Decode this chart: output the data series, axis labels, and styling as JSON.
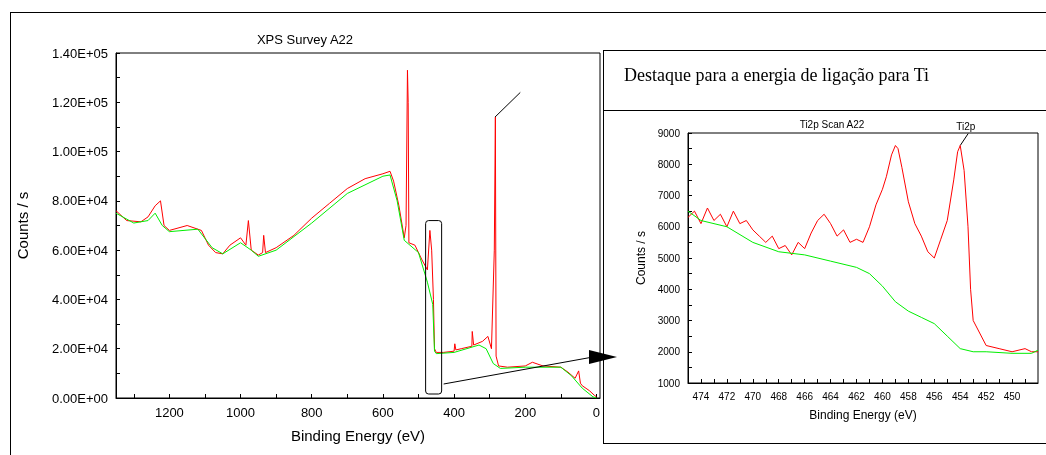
{
  "chart_data": [
    {
      "type": "line",
      "title": "XPS Survey A22",
      "xlabel": "Binding Energy (eV)",
      "ylabel": "Counts / s",
      "marker": "none",
      "grid": false,
      "xlim": [
        1350,
        -10
      ],
      "ylim": [
        0,
        140000
      ],
      "xticks": [
        {
          "value": 1300,
          "label": null
        },
        1200,
        {
          "value": 1100,
          "label": null
        },
        1000,
        {
          "value": 900,
          "label": null
        },
        800,
        {
          "value": 700,
          "label": null
        },
        600,
        {
          "value": 500,
          "label": null
        },
        400,
        {
          "value": 300,
          "label": null
        },
        200,
        {
          "value": 100,
          "label": null
        },
        0
      ],
      "yticks": [
        {
          "value": 0,
          "label": "0.00E+00"
        },
        {
          "value": 10000,
          "label": null
        },
        {
          "value": 20000,
          "label": "2.00E+04"
        },
        {
          "value": 30000,
          "label": null
        },
        {
          "value": 40000,
          "label": "4.00E+04"
        },
        {
          "value": 50000,
          "label": null
        },
        {
          "value": 60000,
          "label": "6.00E+04"
        },
        {
          "value": 70000,
          "label": null
        },
        {
          "value": 80000,
          "label": "8.00E+04"
        },
        {
          "value": 90000,
          "label": null
        },
        {
          "value": 100000,
          "label": "1.00E+05"
        },
        {
          "value": 110000,
          "label": null
        },
        {
          "value": 120000,
          "label": "1.20E+05"
        },
        {
          "value": 130000,
          "label": null
        },
        {
          "value": 140000,
          "label": "1.40E+05"
        }
      ],
      "series": [
        {
          "color": "#ff0000",
          "x": [
            1350,
            1320,
            1280,
            1260,
            1240,
            1225,
            1215,
            1200,
            1150,
            1110,
            1090,
            1070,
            1050,
            1030,
            1000,
            985,
            978,
            970,
            950,
            938,
            935,
            930,
            900,
            850,
            800,
            750,
            700,
            650,
            600,
            580,
            570,
            555,
            540,
            535,
            531,
            529,
            527,
            510,
            490,
            475,
            468,
            463,
            458,
            455,
            450,
            430,
            400,
            398,
            395,
            380,
            350,
            349,
            345,
            320,
            305,
            295,
            287,
            284,
            282,
            275,
            250,
            200,
            180,
            150,
            100,
            80,
            60,
            50,
            45,
            40,
            20,
            5,
            0
          ],
          "values": [
            76000,
            72000,
            71500,
            73500,
            78000,
            80000,
            70000,
            68000,
            70000,
            68000,
            62000,
            59000,
            58500,
            62000,
            65000,
            62000,
            72000,
            60000,
            58000,
            59000,
            66000,
            59000,
            61000,
            66000,
            73000,
            79000,
            85000,
            89000,
            91000,
            92000,
            88000,
            78000,
            65000,
            70000,
            133000,
            120000,
            63000,
            62000,
            56000,
            52000,
            68000,
            60000,
            40000,
            20000,
            18500,
            18500,
            19000,
            22000,
            19500,
            20000,
            21000,
            27000,
            21500,
            23000,
            25000,
            20000,
            60000,
            114000,
            17000,
            13000,
            12500,
            13000,
            14500,
            13000,
            12500,
            10500,
            8000,
            11000,
            6000,
            5000,
            3000,
            1000,
            500
          ]
        },
        {
          "color": "#00ee00",
          "x": [
            1350,
            1300,
            1260,
            1240,
            1220,
            1200,
            1120,
            1080,
            1050,
            1000,
            970,
            950,
            900,
            800,
            700,
            600,
            580,
            560,
            540,
            500,
            475,
            460,
            455,
            450,
            400,
            330,
            310,
            290,
            270,
            200,
            100,
            70,
            40,
            10,
            0
          ],
          "values": [
            75000,
            71000,
            72000,
            75000,
            70000,
            67500,
            68500,
            61000,
            58500,
            63000,
            60000,
            57500,
            60000,
            71000,
            83000,
            90000,
            90500,
            80000,
            64000,
            59000,
            47000,
            38000,
            19000,
            18000,
            18500,
            21500,
            20000,
            14000,
            12000,
            12500,
            12500,
            9000,
            4000,
            500,
            0
          ]
        }
      ]
    },
    {
      "type": "line",
      "title": "Destaque para a energia de ligação para Ti",
      "subtitle": "Ti2p Scan A22",
      "xlabel": "Binding Energy (eV)",
      "ylabel": "Counts / s",
      "marker": "none",
      "grid": false,
      "xlim": [
        475,
        448
      ],
      "ylim": [
        1000,
        9000
      ],
      "xticks": [
        {
          "value": 475,
          "label": null
        },
        474,
        {
          "value": 473,
          "label": null
        },
        472,
        {
          "value": 471,
          "label": null
        },
        470,
        {
          "value": 469,
          "label": null
        },
        468,
        {
          "value": 467,
          "label": null
        },
        466,
        {
          "value": 465,
          "label": null
        },
        464,
        {
          "value": 463,
          "label": null
        },
        462,
        {
          "value": 461,
          "label": null
        },
        460,
        {
          "value": 459,
          "label": null
        },
        458,
        {
          "value": 457,
          "label": null
        },
        456,
        {
          "value": 455,
          "label": null
        },
        454,
        {
          "value": 453,
          "label": null
        },
        452,
        {
          "value": 451,
          "label": null
        },
        450,
        {
          "value": 449,
          "label": null
        }
      ],
      "yticks": [
        1000,
        {
          "value": 1500,
          "label": null
        },
        2000,
        {
          "value": 2500,
          "label": null
        },
        3000,
        {
          "value": 3500,
          "label": null
        },
        4000,
        {
          "value": 4500,
          "label": null
        },
        5000,
        {
          "value": 5500,
          "label": null
        },
        6000,
        {
          "value": 6500,
          "label": null
        },
        7000,
        {
          "value": 7500,
          "label": null
        },
        8000,
        {
          "value": 8500,
          "label": null
        },
        9000
      ],
      "annotations": [
        {
          "text": "Ti2p",
          "x": 454,
          "y": 8600
        }
      ],
      "series": [
        {
          "color": "#ff0000",
          "x": [
            475,
            474.5,
            474,
            473.5,
            473,
            472.5,
            472,
            471.5,
            471,
            470.5,
            470,
            469.5,
            469,
            468.5,
            468,
            467.5,
            467,
            466.5,
            466,
            465.5,
            465,
            464.5,
            464,
            463.5,
            463,
            462.5,
            462,
            461.5,
            461,
            460.5,
            460,
            459.7,
            459.3,
            459,
            458.8,
            458.5,
            458,
            457.5,
            457,
            456.5,
            456,
            455.5,
            455,
            454.5,
            454.2,
            454,
            453.7,
            453.4,
            453.2,
            453,
            452.5,
            452,
            451,
            450,
            449,
            448.5,
            448
          ],
          "values": [
            6300,
            6500,
            6100,
            6600,
            6200,
            6400,
            6000,
            6500,
            6100,
            6200,
            5900,
            5700,
            5500,
            5700,
            5300,
            5400,
            5100,
            5500,
            5300,
            5800,
            6200,
            6400,
            6100,
            5700,
            5900,
            5500,
            5600,
            5500,
            6000,
            6700,
            7200,
            7600,
            8300,
            8600,
            8500,
            7900,
            6800,
            6100,
            5700,
            5200,
            5000,
            5600,
            6200,
            7500,
            8400,
            8600,
            7800,
            6000,
            4000,
            3000,
            2600,
            2200,
            2100,
            2000,
            2100,
            2000,
            2000
          ]
        },
        {
          "color": "#00ee00",
          "x": [
            475,
            474,
            472,
            470,
            468,
            466,
            464,
            462,
            461,
            460,
            459,
            458,
            457,
            456,
            455,
            454,
            453,
            452,
            450,
            448.5,
            448
          ],
          "values": [
            6500,
            6200,
            6000,
            5500,
            5200,
            5100,
            4900,
            4700,
            4500,
            4100,
            3600,
            3300,
            3100,
            2900,
            2500,
            2100,
            2000,
            2000,
            1950,
            1950,
            2050
          ]
        }
      ]
    }
  ]
}
